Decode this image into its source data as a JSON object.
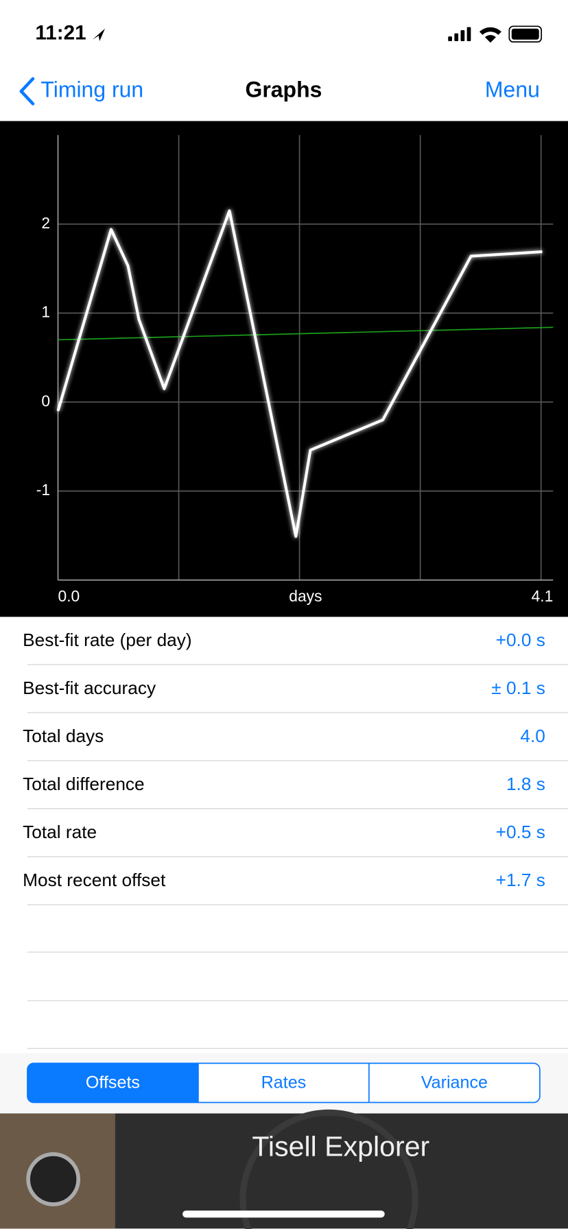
{
  "status_bar": {
    "time": "11:21"
  },
  "nav": {
    "back": "Timing run",
    "title": "Graphs",
    "menu": "Menu"
  },
  "chart_data": {
    "type": "line",
    "color": "#ffffff",
    "x": [
      0,
      0.44,
      0.58,
      0.67,
      0.88,
      1.42,
      1.97,
      2.09,
      2.69,
      3.42,
      4.01
    ],
    "values": [
      -0.1,
      1.94,
      1.53,
      0.93,
      0.15,
      2.15,
      -1.51,
      -0.54,
      -0.2,
      1.64,
      1.69
    ],
    "fit": {
      "x": [
        0,
        4.1
      ],
      "values": [
        0.7,
        0.84
      ],
      "color": "#1a9e1a"
    },
    "x_label": "days",
    "xlim": [
      0,
      4.1
    ],
    "xticks": [
      {
        "value": 0,
        "label": "0.0"
      },
      4.1
    ],
    "xgrid": [
      1,
      2,
      3,
      4
    ],
    "ylim": [
      -2,
      3
    ],
    "yticks": [
      -1,
      0,
      1,
      2
    ],
    "grid": true
  },
  "table": {
    "rows": [
      [
        "Best-fit rate (per day)",
        "+0.0 s"
      ],
      [
        "Best-fit accuracy",
        "± 0.1 s"
      ],
      [
        "Total days",
        "4.0"
      ],
      [
        "Total difference",
        "1.8 s"
      ],
      [
        "Total rate",
        "+0.5 s"
      ],
      [
        "Most recent offset",
        "+1.7 s"
      ]
    ]
  },
  "segments": {
    "items": [
      "Offsets",
      "Rates",
      "Variance"
    ],
    "selected": 0
  },
  "banner": {
    "title": "Tisell Explorer"
  }
}
